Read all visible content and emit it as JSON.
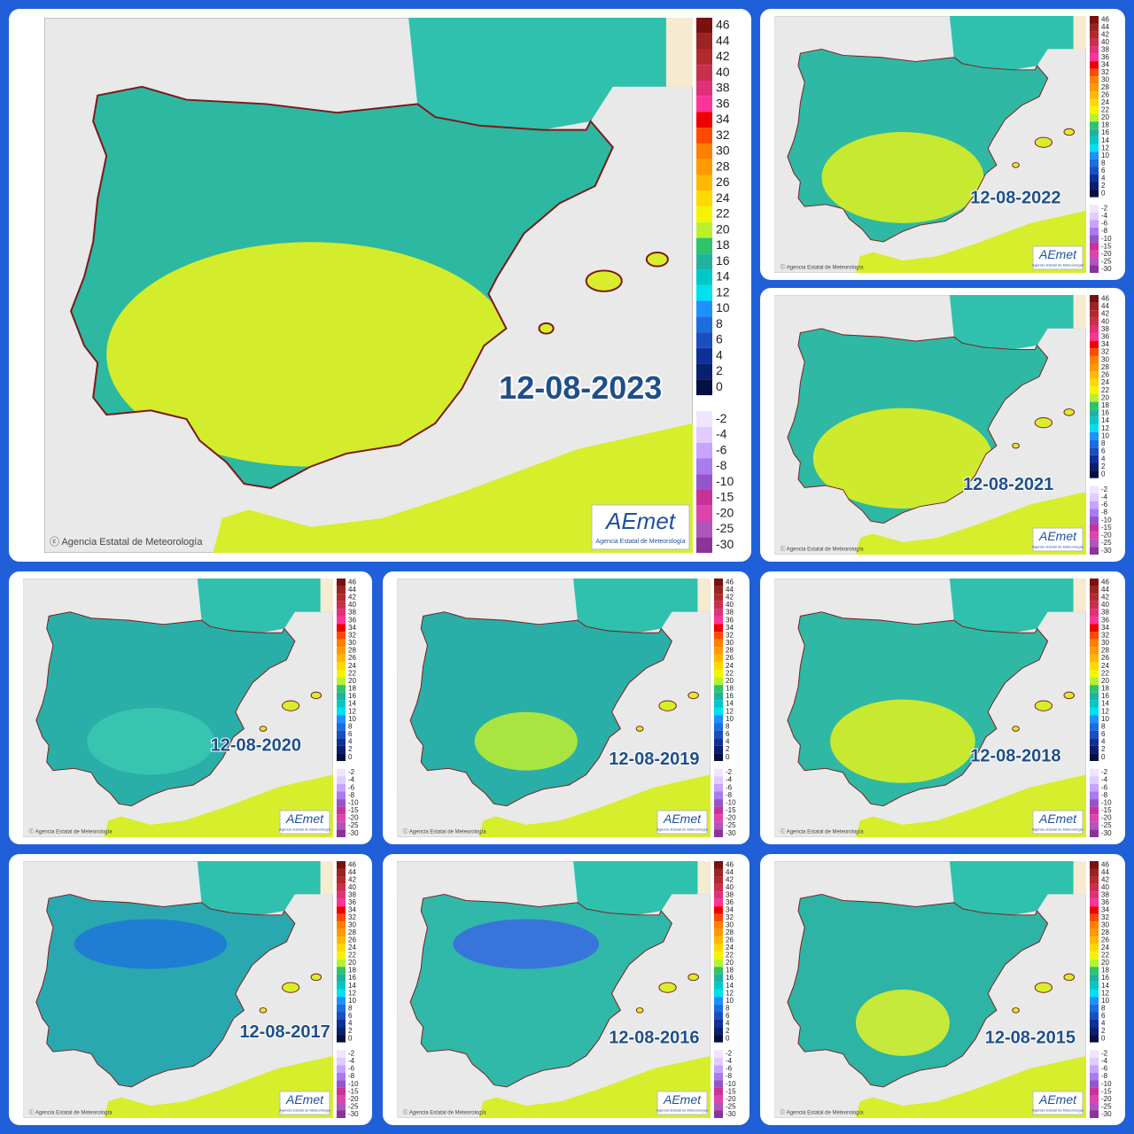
{
  "panels": [
    {
      "date": "12-08-2023"
    },
    {
      "date": "12-08-2022"
    },
    {
      "date": "12-08-2021"
    },
    {
      "date": "12-08-2020"
    },
    {
      "date": "12-08-2019"
    },
    {
      "date": "12-08-2018"
    },
    {
      "date": "12-08-2017"
    },
    {
      "date": "12-08-2016"
    },
    {
      "date": "12-08-2015"
    }
  ],
  "legend": {
    "labels": [
      "46",
      "44",
      "42",
      "40",
      "38",
      "36",
      "34",
      "32",
      "30",
      "28",
      "26",
      "24",
      "22",
      "20",
      "18",
      "16",
      "14",
      "12",
      "10",
      "8",
      "6",
      "4",
      "2",
      "0",
      "-2",
      "-4",
      "-6",
      "-8",
      "-10",
      "-15",
      "-20",
      "-25",
      "-30"
    ],
    "colors": [
      "#7a1010",
      "#9b2323",
      "#b22a2a",
      "#c8304d",
      "#e0307a",
      "#ff3399",
      "#ee0000",
      "#ff4a00",
      "#ff7f00",
      "#ff9a00",
      "#ffb800",
      "#ffd800",
      "#f4f400",
      "#b8f030",
      "#2fc46a",
      "#20b2a0",
      "#00c8c8",
      "#00e0ee",
      "#1e90ff",
      "#1a6ee0",
      "#1a4fc0",
      "#0f3098",
      "#0a1f70",
      "#061040",
      "#f0e4ff",
      "#e0ccff",
      "#c8a4ff",
      "#aa7aee",
      "#9455cc",
      "#c83399",
      "#dd44aa",
      "#b055bb",
      "#8a3399"
    ]
  },
  "footer": "ⓒ Agencia Estatal de Meteorología",
  "logo": {
    "brand": "AEmet",
    "caption": "Agencia Estatal de Meteorología"
  }
}
